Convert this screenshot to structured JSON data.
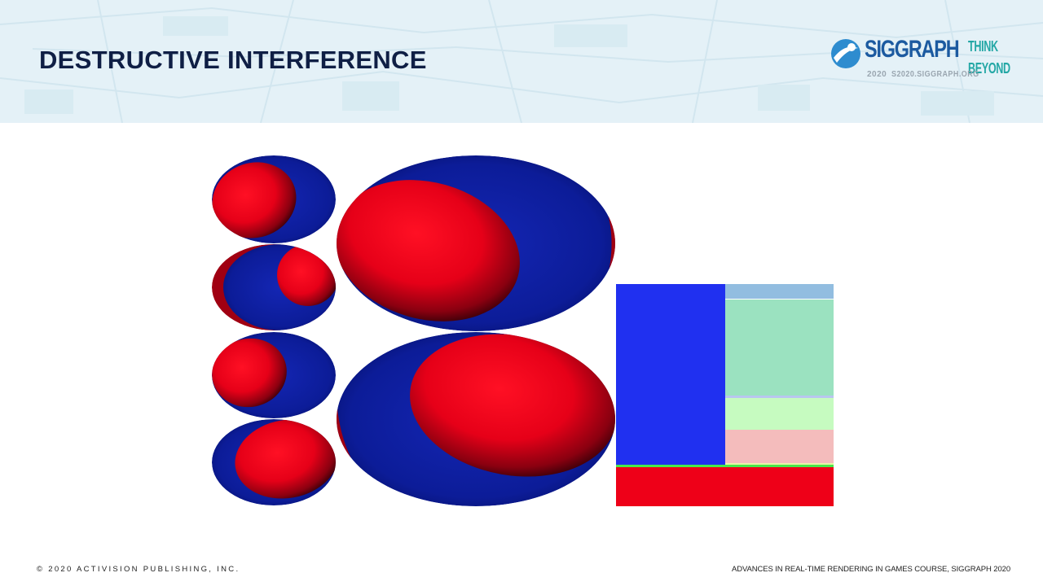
{
  "slide": {
    "title": "DESTRUCTIVE INTERFERENCE"
  },
  "logo": {
    "wordmark": "SIGGRAPH",
    "tagline_top": "THINK",
    "tagline_bottom": "BEYOND",
    "year": "2020",
    "url": "S2020.SIGGRAPH.ORG"
  },
  "colors": {
    "red_lobe": "#ec0018",
    "blue_lobe": "#1020a0",
    "atlas_blue": "#2030f0",
    "atlas_red": "#ee0018",
    "atlas_light_blue": "#92bde0",
    "atlas_green": "#9be2c0",
    "atlas_light_green": "#c6fbc0",
    "atlas_pink": "#f4bcbc",
    "title_color": "#0f1f45"
  },
  "footer": {
    "left": "© 2020 ACTIVISION PUBLISHING, INC.",
    "right": "ADVANCES IN REAL-TIME RENDERING IN GAMES COURSE, SIGGRAPH 2020"
  }
}
